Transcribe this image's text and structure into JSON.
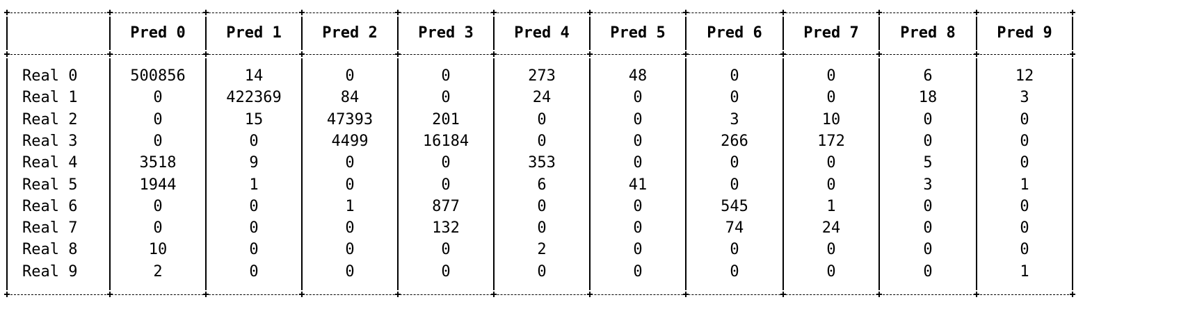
{
  "table": {
    "columns": [
      "",
      "Pred 0",
      "Pred 1",
      "Pred 2",
      "Pred 3",
      "Pred 4",
      "Pred 5",
      "Pred 6",
      "Pred 7",
      "Pred 8",
      "Pred 9"
    ],
    "rows": [
      {
        "label": "Real 0",
        "values": [
          "500856",
          "14",
          "0",
          "0",
          "273",
          "48",
          "0",
          "0",
          "6",
          "12"
        ]
      },
      {
        "label": "Real 1",
        "values": [
          "0",
          "422369",
          "84",
          "0",
          "24",
          "0",
          "0",
          "0",
          "18",
          "3"
        ]
      },
      {
        "label": "Real 2",
        "values": [
          "0",
          "15",
          "47393",
          "201",
          "0",
          "0",
          "3",
          "10",
          "0",
          "0"
        ]
      },
      {
        "label": "Real 3",
        "values": [
          "0",
          "0",
          "4499",
          "16184",
          "0",
          "0",
          "266",
          "172",
          "0",
          "0"
        ]
      },
      {
        "label": "Real 4",
        "values": [
          "3518",
          "9",
          "0",
          "0",
          "353",
          "0",
          "0",
          "0",
          "5",
          "0"
        ]
      },
      {
        "label": "Real 5",
        "values": [
          "1944",
          "1",
          "0",
          "0",
          "6",
          "41",
          "0",
          "0",
          "3",
          "1"
        ]
      },
      {
        "label": "Real 6",
        "values": [
          "0",
          "0",
          "1",
          "877",
          "0",
          "0",
          "545",
          "1",
          "0",
          "0"
        ]
      },
      {
        "label": "Real 7",
        "values": [
          "0",
          "0",
          "0",
          "132",
          "0",
          "0",
          "74",
          "24",
          "0",
          "0"
        ]
      },
      {
        "label": "Real 8",
        "values": [
          "10",
          "0",
          "0",
          "0",
          "2",
          "0",
          "0",
          "0",
          "0",
          "0"
        ]
      },
      {
        "label": "Real 9",
        "values": [
          "2",
          "0",
          "0",
          "0",
          "0",
          "0",
          "0",
          "0",
          "0",
          "1"
        ]
      }
    ]
  }
}
